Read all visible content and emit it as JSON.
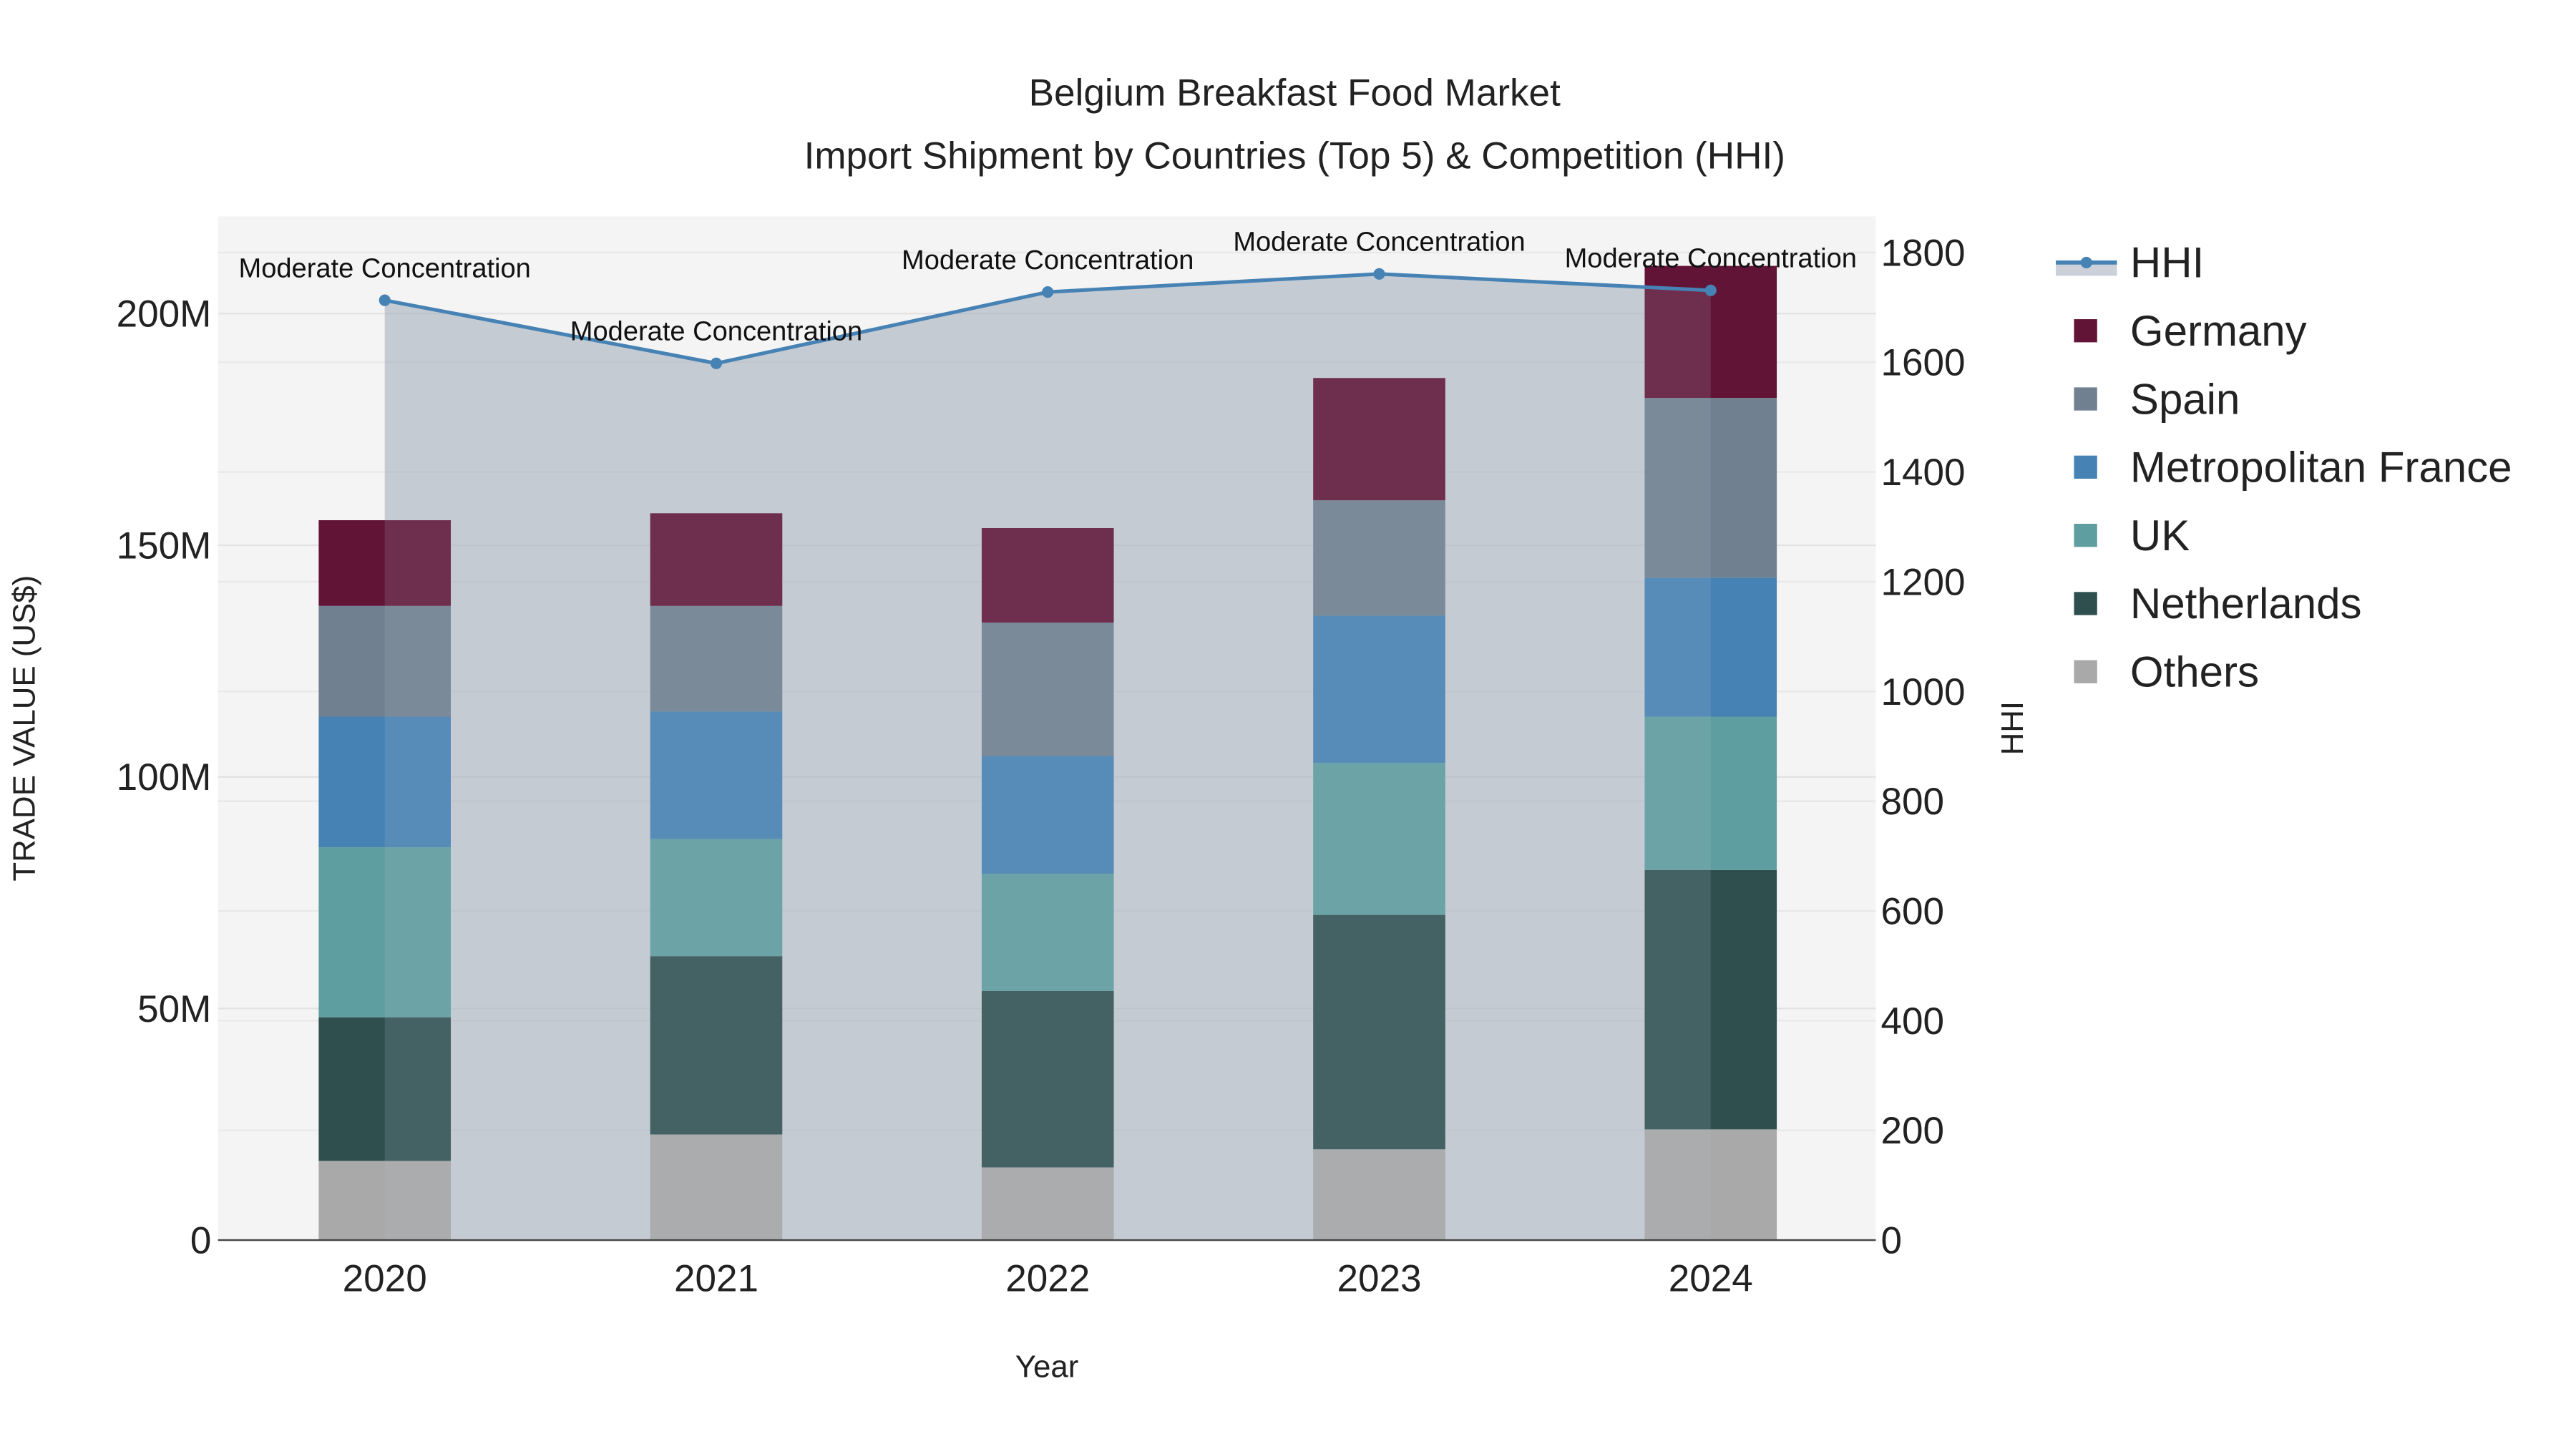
{
  "chart_data": {
    "type": "bar",
    "title": "Belgium Breakfast Food Market",
    "subtitle": "Import Shipment by Countries (Top 5) & Competition (HHI)",
    "xlabel": "Year",
    "ylabel": "TRADE VALUE (US$)",
    "y2label": "HHI",
    "categories": [
      "2020",
      "2021",
      "2022",
      "2023",
      "2024"
    ],
    "ylim": [
      0,
      221
    ],
    "y_unit": "M (US$)",
    "y_ticks": [
      0,
      50,
      100,
      150,
      200
    ],
    "y_tick_labels": [
      "0",
      "50M",
      "100M",
      "150M",
      "200M"
    ],
    "y2lim": [
      0,
      1866
    ],
    "y2_ticks": [
      0,
      200,
      400,
      600,
      800,
      1000,
      1200,
      1400,
      1600,
      1800
    ],
    "y2_tick_labels": [
      "0",
      "200",
      "400",
      "600",
      "800",
      "1000",
      "1200",
      "1400",
      "1600",
      "1800"
    ],
    "grid": true,
    "barmode": "stack",
    "legend_position": "right",
    "series": [
      {
        "name": "Others",
        "color": "#a9a9a9",
        "values": [
          17.1,
          22.8,
          15.7,
          19.6,
          23.9
        ]
      },
      {
        "name": "Netherlands",
        "color": "#2f4f4f",
        "values": [
          31.0,
          38.5,
          38.1,
          50.6,
          56.0
        ]
      },
      {
        "name": "UK",
        "color": "#5f9ea0",
        "values": [
          36.7,
          25.3,
          25.3,
          32.8,
          33.1
        ]
      },
      {
        "name": "Metropolitan France",
        "color": "#4682b4",
        "values": [
          28.2,
          27.5,
          25.4,
          31.8,
          30.0
        ]
      },
      {
        "name": "Spain",
        "color": "#708090",
        "values": [
          23.9,
          22.8,
          28.8,
          24.9,
          38.8
        ]
      },
      {
        "name": "Germany",
        "color": "#611436",
        "values": [
          18.5,
          20.0,
          20.4,
          26.4,
          28.5
        ]
      }
    ],
    "hhi": {
      "name": "HHI",
      "color": "#4682b4",
      "values": [
        1713,
        1598,
        1728,
        1761,
        1731
      ],
      "annotations": [
        "Moderate Concentration",
        "Moderate Concentration",
        "Moderate Concentration",
        "Moderate Concentration",
        "Moderate Concentration"
      ]
    },
    "legend": [
      "HHI",
      "Germany",
      "Spain",
      "Metropolitan France",
      "UK",
      "Netherlands",
      "Others"
    ]
  }
}
